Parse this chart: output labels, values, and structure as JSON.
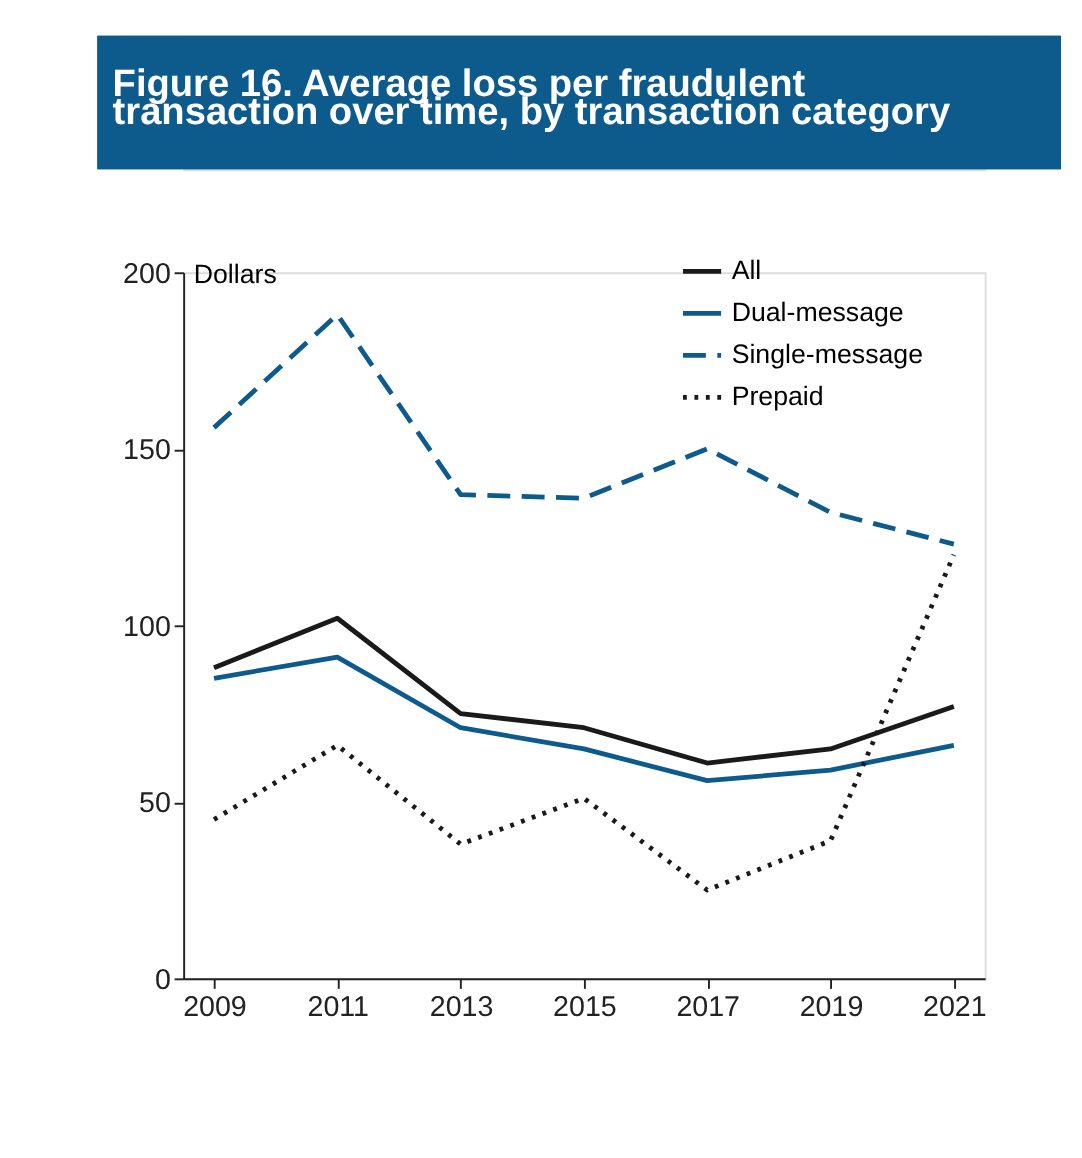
{
  "chart_data": {
    "type": "line",
    "title": "Figure 16. Average loss per fraudulent\ntransaction over time, by transaction category",
    "ylabel": "Dollars",
    "x": [
      2009,
      2011,
      2013,
      2015,
      2017,
      2019,
      2021
    ],
    "xlim": [
      2008.5,
      2021.5
    ],
    "xticks": [
      2009,
      2011,
      2013,
      2015,
      2017,
      2019,
      2021
    ],
    "ylim": [
      0,
      200
    ],
    "yticks": [
      0,
      50,
      100,
      150,
      200
    ],
    "grid": false,
    "legend": "top right",
    "marker": "none",
    "series": [
      {
        "name": "All",
        "color": "#1a1a1a",
        "line_style": "solid",
        "values": [
          88,
          102,
          75,
          71,
          61,
          65,
          77
        ]
      },
      {
        "name": "Dual-message",
        "color": "#0d5a8c",
        "line_style": "solid",
        "values": [
          85,
          91,
          71,
          65,
          56,
          59,
          66
        ]
      },
      {
        "name": "Single-message",
        "color": "#0d5a8c",
        "line_style": "dashed",
        "values": [
          156,
          188,
          137,
          136,
          150,
          132,
          123
        ]
      },
      {
        "name": "Prepaid",
        "color": "#1a1a1a",
        "line_style": "dotted",
        "values": [
          45,
          66,
          38,
          51,
          25,
          39,
          120
        ]
      }
    ]
  }
}
